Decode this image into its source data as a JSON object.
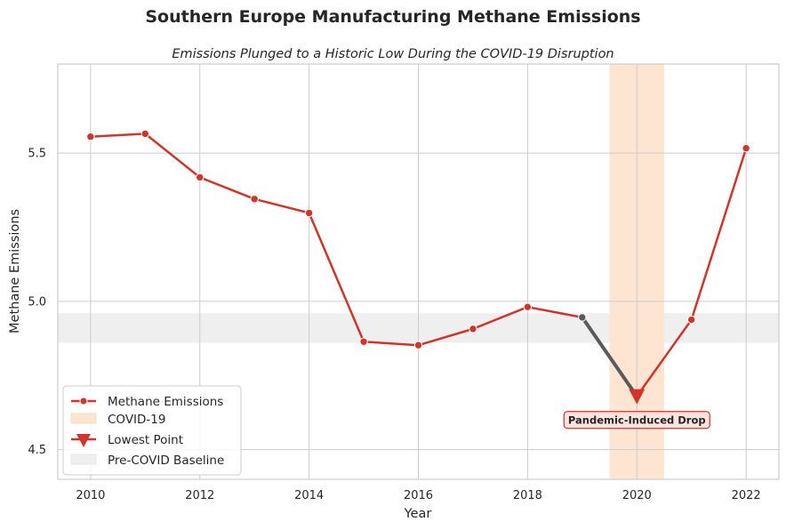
{
  "chart_data": {
    "type": "line",
    "title": "Southern Europe Manufacturing Methane Emissions",
    "subtitle": "Emissions Plunged to a Historic Low During the COVID-19 Disruption",
    "xlabel": "Year",
    "ylabel": "Methane Emissions",
    "xlim": [
      2009.4,
      2022.6
    ],
    "ylim": [
      4.4,
      5.8
    ],
    "xticks": [
      "2010",
      "2012",
      "2014",
      "2016",
      "2018",
      "2020",
      "2022"
    ],
    "yticks": [
      "4.5",
      "5.0",
      "5.5"
    ],
    "grid": true,
    "series": [
      {
        "name": "Methane Emissions",
        "color": "#d1342b",
        "x": [
          2010,
          2011,
          2012,
          2013,
          2014,
          2015,
          2016,
          2017,
          2018,
          2019,
          2020,
          2021,
          2022
        ],
        "values": [
          5.555,
          5.565,
          5.418,
          5.345,
          5.298,
          4.864,
          4.852,
          4.907,
          4.981,
          4.946,
          4.68,
          4.938,
          5.516
        ]
      }
    ],
    "covid_segment_color": "#5a5a5a",
    "covid_span": {
      "label": "COVID-19",
      "x": [
        2019.5,
        2020.5
      ],
      "color": "#fde5d2"
    },
    "baseline_band": {
      "label": "Pre-COVID Baseline",
      "y": [
        4.86,
        4.96
      ],
      "color": "#efefef"
    },
    "lowest_point": {
      "label": "Lowest Point",
      "x": 2020,
      "y": 4.68,
      "color": "#d1342b"
    },
    "annotation": {
      "text": "Pandemic-Induced Drop",
      "x": 2020,
      "y": 4.6
    },
    "legend_position": "lower-left"
  }
}
